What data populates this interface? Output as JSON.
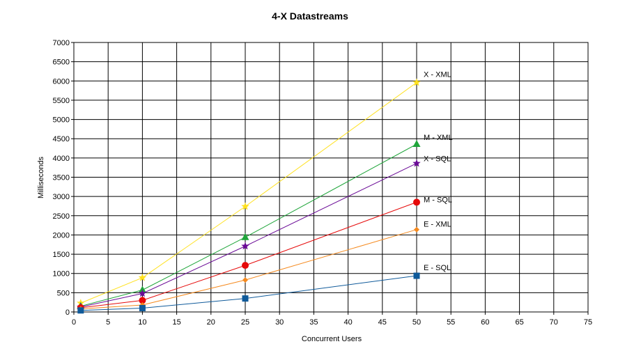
{
  "chart_data": {
    "type": "line",
    "title": "4-X Datastreams",
    "xlabel": "Concurrent Users",
    "ylabel": "Milliseconds",
    "xlim": [
      0,
      75
    ],
    "ylim": [
      0,
      7000
    ],
    "xticks": [
      0,
      5,
      10,
      15,
      20,
      25,
      30,
      35,
      40,
      45,
      50,
      55,
      60,
      65,
      70,
      75
    ],
    "yticks": [
      0,
      500,
      1000,
      1500,
      2000,
      2500,
      3000,
      3500,
      4000,
      4500,
      5000,
      5500,
      6000,
      6500,
      7000
    ],
    "grid": true,
    "legend": "labels at line ends",
    "x": [
      1,
      10,
      25,
      50
    ],
    "series": [
      {
        "name": "X - XML",
        "values": [
          230,
          890,
          2740,
          5960
        ],
        "color": "#FFE11F",
        "marker": "star"
      },
      {
        "name": "M - XML",
        "values": [
          150,
          570,
          1940,
          4360
        ],
        "color": "#1FA53A",
        "marker": "triangle"
      },
      {
        "name": "X - SQL",
        "values": [
          130,
          480,
          1710,
          3860
        ],
        "color": "#6A0A96",
        "marker": "star"
      },
      {
        "name": "M - SQL",
        "values": [
          110,
          300,
          1210,
          2850
        ],
        "color": "#E60A0A",
        "marker": "circle"
      },
      {
        "name": "E - XML",
        "values": [
          80,
          180,
          830,
          2140
        ],
        "color": "#F58A1F",
        "marker": "diamond"
      },
      {
        "name": "E - SQL",
        "values": [
          40,
          100,
          350,
          940
        ],
        "color": "#0F5A9A",
        "marker": "square"
      }
    ]
  }
}
